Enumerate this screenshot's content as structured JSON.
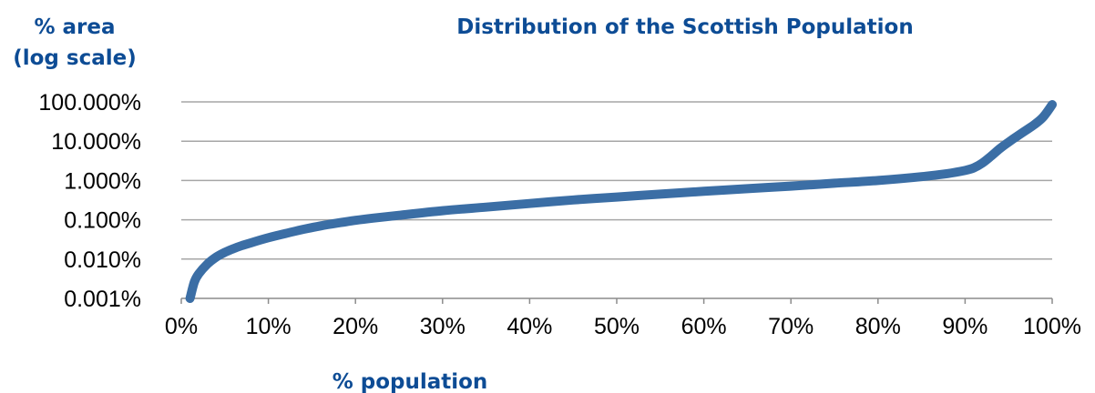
{
  "chart_data": {
    "type": "line",
    "title": "Distribution of the Scottish Population",
    "xlabel": "% population",
    "ylabel_lines": [
      "% area",
      "(log scale)"
    ],
    "y_scale": "log",
    "xlim": [
      0,
      100
    ],
    "ylim": [
      0.001,
      100
    ],
    "x_ticks": [
      0,
      10,
      20,
      30,
      40,
      50,
      60,
      70,
      80,
      90,
      100
    ],
    "x_tick_labels": [
      "0%",
      "10%",
      "20%",
      "30%",
      "40%",
      "50%",
      "60%",
      "70%",
      "80%",
      "90%",
      "100%"
    ],
    "y_ticks": [
      0.001,
      0.01,
      0.1,
      1,
      10,
      100
    ],
    "y_tick_labels": [
      "0.001%",
      "0.010%",
      "0.100%",
      "1.000%",
      "10.000%",
      "100.000%"
    ],
    "grid": true,
    "legend": "none",
    "series": [
      {
        "color": "#3b6ea5",
        "x": [
          1,
          1.5,
          2,
          3,
          4,
          5,
          6,
          7,
          8,
          10,
          12,
          14,
          16,
          18,
          20,
          22,
          25,
          30,
          35,
          40,
          45,
          50,
          55,
          60,
          65,
          70,
          75,
          80,
          85,
          88,
          90,
          91,
          92,
          93,
          94,
          95,
          96,
          97,
          98,
          99,
          100
        ],
        "y": [
          0.001,
          0.0026,
          0.0042,
          0.0075,
          0.0112,
          0.0148,
          0.0185,
          0.0222,
          0.026,
          0.035,
          0.045,
          0.057,
          0.07,
          0.083,
          0.097,
          0.11,
          0.13,
          0.17,
          0.21,
          0.26,
          0.32,
          0.38,
          0.45,
          0.53,
          0.62,
          0.72,
          0.85,
          1.0,
          1.25,
          1.5,
          1.8,
          2.1,
          2.8,
          4.2,
          6.5,
          9.5,
          13.5,
          19,
          27,
          42,
          85
        ]
      }
    ]
  }
}
